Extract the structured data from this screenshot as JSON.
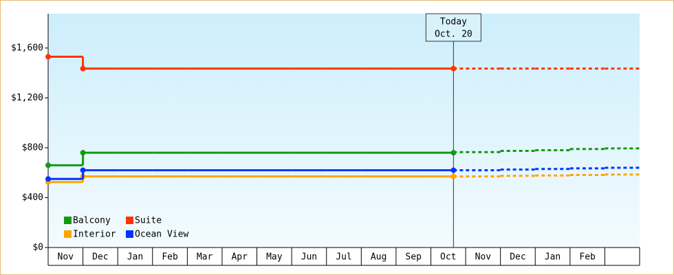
{
  "chart_data": {
    "type": "step-line",
    "categories": [
      "Nov",
      "Dec",
      "Jan",
      "Feb",
      "Mar",
      "Apr",
      "May",
      "Jun",
      "Jul",
      "Aug",
      "Sep",
      "Oct",
      "Nov",
      "Dec",
      "Jan",
      "Feb",
      null
    ],
    "annotation": [
      "Today",
      "Oct. 20"
    ],
    "ylim": [
      0,
      1875
    ],
    "yticks": [
      {
        "value": 0,
        "label": "$0"
      },
      {
        "value": 400,
        "label": "$400"
      },
      {
        "value": 800,
        "label": "$800"
      },
      {
        "value": 1200,
        "label": "$1,200"
      },
      {
        "value": 1600,
        "label": "$1,600"
      }
    ],
    "series": [
      {
        "name": "Balcony",
        "color": "#129a12",
        "values": [
          660,
          760,
          760,
          760,
          760,
          760,
          760,
          760,
          760,
          760,
          760,
          760,
          null,
          null,
          null,
          null,
          null
        ],
        "forecast": [
          null,
          null,
          null,
          null,
          null,
          null,
          null,
          null,
          null,
          null,
          null,
          null,
          765,
          775,
          780,
          790,
          795
        ]
      },
      {
        "name": "Suite",
        "color": "#ff3300",
        "values": [
          1530,
          1435,
          1435,
          1435,
          1435,
          1435,
          1435,
          1435,
          1435,
          1435,
          1435,
          1435,
          null,
          null,
          null,
          null,
          null
        ],
        "forecast": [
          null,
          null,
          null,
          null,
          null,
          null,
          null,
          null,
          null,
          null,
          null,
          null,
          1435,
          1435,
          1435,
          1435,
          1435
        ]
      },
      {
        "name": "Interior",
        "color": "#ffa500",
        "values": [
          525,
          570,
          570,
          570,
          570,
          570,
          570,
          570,
          570,
          570,
          570,
          570,
          null,
          null,
          null,
          null,
          null
        ],
        "forecast": [
          null,
          null,
          null,
          null,
          null,
          null,
          null,
          null,
          null,
          null,
          null,
          null,
          570,
          575,
          578,
          582,
          585
        ]
      },
      {
        "name": "Ocean View",
        "color": "#0033ff",
        "values": [
          550,
          620,
          620,
          620,
          620,
          620,
          620,
          620,
          620,
          620,
          620,
          620,
          null,
          null,
          null,
          null,
          null
        ],
        "forecast": [
          null,
          null,
          null,
          null,
          null,
          null,
          null,
          null,
          null,
          null,
          null,
          null,
          620,
          625,
          630,
          635,
          640
        ]
      }
    ]
  }
}
